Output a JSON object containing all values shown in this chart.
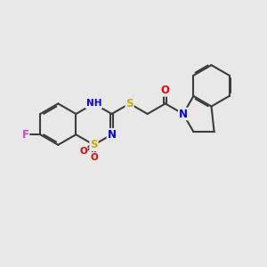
{
  "background_color": "#e8e8e8",
  "bond_color": "#3d3d3d",
  "bond_width": 1.5,
  "atom_colors": {
    "N": "#0000ee",
    "S": "#ccaa00",
    "O": "#ee0000",
    "F": "#cc44cc",
    "C": "#3d3d3d"
  },
  "font_size": 8.5
}
